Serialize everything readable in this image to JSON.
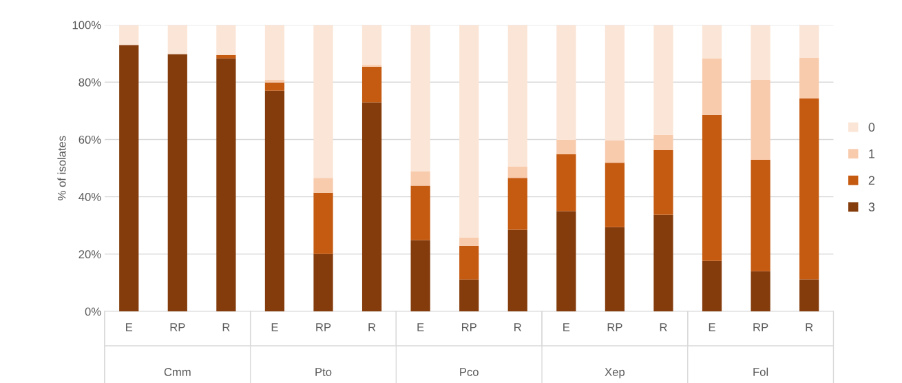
{
  "chart_data": {
    "type": "bar",
    "stacked": true,
    "ylabel": "% of isolates",
    "categories": [
      "E",
      "RP",
      "R",
      "E",
      "RP",
      "R",
      "E",
      "RP",
      "R",
      "E",
      "RP",
      "R",
      "E",
      "RP",
      "R"
    ],
    "annotations": [
      "Cmm",
      "Pto",
      "Pco",
      "Xep",
      "Fol"
    ],
    "series": [
      {
        "name": "3",
        "color": "#843c0c",
        "values": [
          93.0,
          89.8,
          88.3,
          77.0,
          20.0,
          73.0,
          24.9,
          11.1,
          28.5,
          35.0,
          29.4,
          33.7,
          17.6,
          14.0,
          11.2
        ]
      },
      {
        "name": "2",
        "color": "#c55a11",
        "values": [
          0,
          0,
          1.2,
          2.9,
          21.4,
          12.4,
          19.0,
          11.8,
          18.1,
          19.9,
          22.5,
          22.6,
          51.0,
          38.9,
          63.1
        ]
      },
      {
        "name": "1",
        "color": "#f8cbad",
        "values": [
          0,
          0,
          0,
          0.9,
          5.2,
          0.6,
          4.9,
          2.9,
          3.9,
          5.0,
          7.8,
          5.3,
          19.7,
          27.9,
          14.2
        ]
      },
      {
        "name": "0",
        "color": "#fbe5d6",
        "values": [
          7.0,
          10.2,
          10.5,
          19.2,
          53.4,
          14.0,
          51.2,
          74.2,
          49.5,
          40.1,
          40.3,
          38.4,
          11.7,
          19.2,
          11.5
        ]
      }
    ],
    "ylim": [
      0,
      100
    ],
    "yticks": [
      {
        "value": 0,
        "label": "0%"
      },
      {
        "value": 20,
        "label": "20%"
      },
      {
        "value": 40,
        "label": "40%"
      },
      {
        "value": 60,
        "label": "60%"
      },
      {
        "value": 80,
        "label": "80%"
      },
      {
        "value": 100,
        "label": "100%"
      }
    ],
    "grid": "y",
    "legend": "right"
  }
}
